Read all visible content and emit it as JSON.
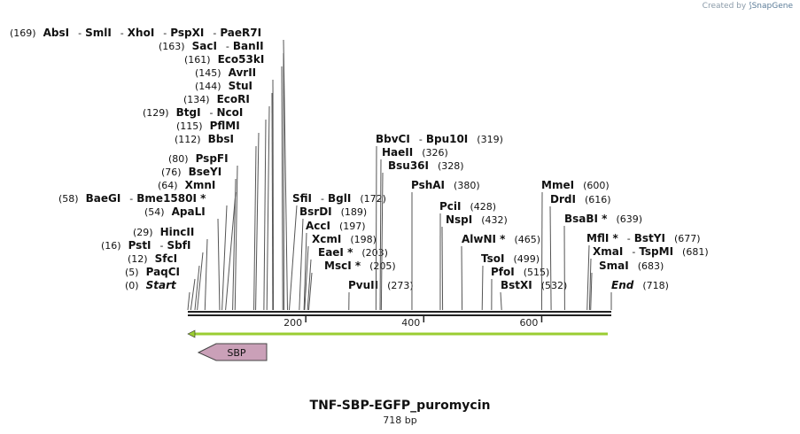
{
  "credit": {
    "prefix": "Created by",
    "brand": "SnapGene"
  },
  "map": {
    "title": "TNF-SBP-EGFP_puromycin",
    "length_label": "718 bp",
    "bp_length": 718,
    "ticks": [
      200,
      400,
      600
    ],
    "feature_color": "#caa0b8",
    "arrow_color": "#9acd32",
    "feature": {
      "label": "SBP"
    },
    "labels": [
      {
        "pos": 0,
        "pos_text": "(0)",
        "names": [
          "Start"
        ],
        "italic": true
      },
      {
        "pos": 5,
        "pos_text": "(5)",
        "names": [
          "PaqCI"
        ]
      },
      {
        "pos": 12,
        "pos_text": "(12)",
        "names": [
          "SfcI"
        ]
      },
      {
        "pos": 16,
        "pos_text": "(16)",
        "names": [
          "PstI",
          "SbfI"
        ]
      },
      {
        "pos": 29,
        "pos_text": "(29)",
        "names": [
          "HincII"
        ]
      },
      {
        "pos": 54,
        "pos_text": "(54)",
        "names": [
          "ApaLI"
        ]
      },
      {
        "pos": 58,
        "pos_text": "(58)",
        "names": [
          "BaeGI",
          "Bme1580I *"
        ]
      },
      {
        "pos": 64,
        "pos_text": "(64)",
        "names": [
          "XmnI"
        ]
      },
      {
        "pos": 76,
        "pos_text": "(76)",
        "names": [
          "BseYI"
        ]
      },
      {
        "pos": 80,
        "pos_text": "(80)",
        "names": [
          "PspFI"
        ]
      },
      {
        "pos": 112,
        "pos_text": "(112)",
        "names": [
          "BbsI"
        ]
      },
      {
        "pos": 115,
        "pos_text": "(115)",
        "names": [
          "PflMI"
        ]
      },
      {
        "pos": 129,
        "pos_text": "(129)",
        "names": [
          "BtgI",
          "NcoI"
        ]
      },
      {
        "pos": 134,
        "pos_text": "(134)",
        "names": [
          "EcoRI"
        ]
      },
      {
        "pos": 144,
        "pos_text": "(144)",
        "names": [
          "StuI"
        ]
      },
      {
        "pos": 145,
        "pos_text": "(145)",
        "names": [
          "AvrII"
        ]
      },
      {
        "pos": 161,
        "pos_text": "(161)",
        "names": [
          "Eco53kI"
        ]
      },
      {
        "pos": 163,
        "pos_text": "(163)",
        "names": [
          "SacI",
          "BanII"
        ]
      },
      {
        "pos": 169,
        "pos_text": "(169)",
        "names": [
          "AbsI",
          "SmlI",
          "XhoI",
          "PspXI",
          "PaeR7I"
        ]
      },
      {
        "pos": 172,
        "pos_text": "(172)",
        "names": [
          "SfiI",
          "BglI"
        ]
      },
      {
        "pos": 189,
        "pos_text": "(189)",
        "names": [
          "BsrDI"
        ]
      },
      {
        "pos": 197,
        "pos_text": "(197)",
        "names": [
          "AccI"
        ]
      },
      {
        "pos": 198,
        "pos_text": "(198)",
        "names": [
          "XcmI"
        ]
      },
      {
        "pos": 203,
        "pos_text": "(203)",
        "names": [
          "EaeI *"
        ]
      },
      {
        "pos": 205,
        "pos_text": "(205)",
        "names": [
          "MscI *"
        ]
      },
      {
        "pos": 273,
        "pos_text": "(273)",
        "names": [
          "PvuII"
        ]
      },
      {
        "pos": 319,
        "pos_text": "(319)",
        "names": [
          "BbvCI",
          "Bpu10I"
        ]
      },
      {
        "pos": 326,
        "pos_text": "(326)",
        "names": [
          "HaeII"
        ]
      },
      {
        "pos": 328,
        "pos_text": "(328)",
        "names": [
          "Bsu36I"
        ]
      },
      {
        "pos": 380,
        "pos_text": "(380)",
        "names": [
          "PshAI"
        ]
      },
      {
        "pos": 428,
        "pos_text": "(428)",
        "names": [
          "PciI"
        ]
      },
      {
        "pos": 432,
        "pos_text": "(432)",
        "names": [
          "NspI"
        ]
      },
      {
        "pos": 465,
        "pos_text": "(465)",
        "names": [
          "AlwNI *"
        ]
      },
      {
        "pos": 499,
        "pos_text": "(499)",
        "names": [
          "TsoI"
        ]
      },
      {
        "pos": 515,
        "pos_text": "(515)",
        "names": [
          "PfoI"
        ]
      },
      {
        "pos": 532,
        "pos_text": "(532)",
        "names": [
          "BstXI"
        ]
      },
      {
        "pos": 600,
        "pos_text": "(600)",
        "names": [
          "MmeI"
        ]
      },
      {
        "pos": 616,
        "pos_text": "(616)",
        "names": [
          "DrdI"
        ]
      },
      {
        "pos": 639,
        "pos_text": "(639)",
        "names": [
          "BsaBI *"
        ]
      },
      {
        "pos": 677,
        "pos_text": "(677)",
        "names": [
          "MflI *",
          "BstYI"
        ]
      },
      {
        "pos": 681,
        "pos_text": "(681)",
        "names": [
          "XmaI",
          "TspMI"
        ]
      },
      {
        "pos": 683,
        "pos_text": "(683)",
        "names": [
          "SmaI"
        ]
      },
      {
        "pos": 718,
        "pos_text": "(718)",
        "names": [
          "End"
        ],
        "italic": true
      }
    ]
  }
}
